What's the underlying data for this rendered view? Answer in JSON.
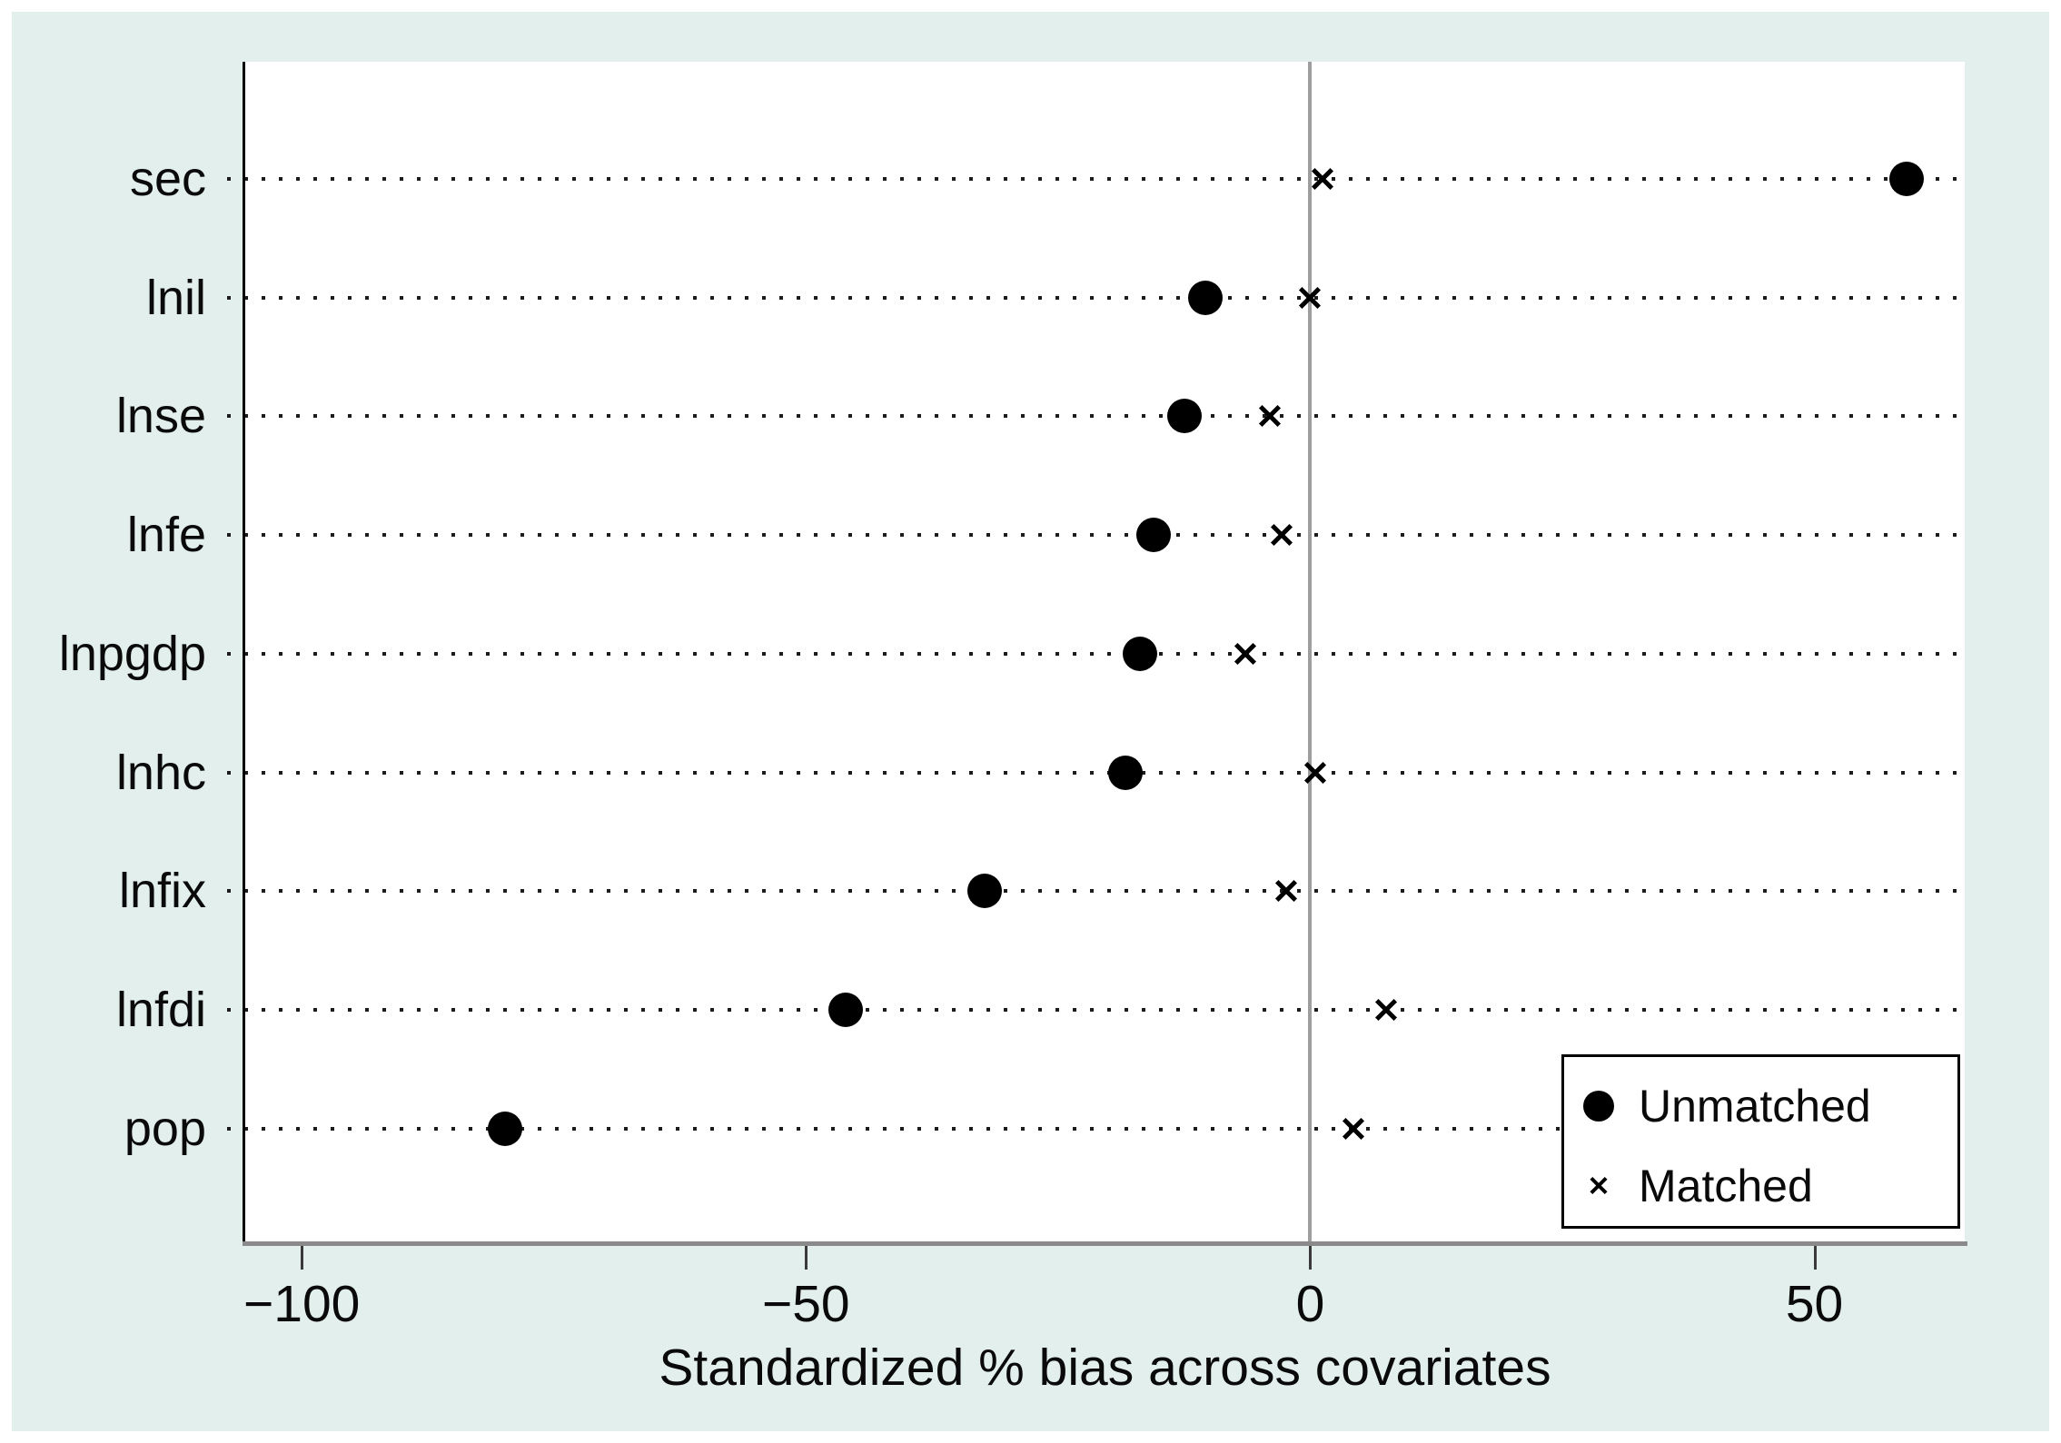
{
  "figure": {
    "background_color": "#e2efec",
    "plot_background": "#ffffff",
    "zero_line_color": "#9e9e9e",
    "bottom_axis_color": "#8a8a8a"
  },
  "x_axis": {
    "title": "Standardized % bias across covariates",
    "ticks": [
      {
        "value": -100,
        "label": "−100"
      },
      {
        "value": -50,
        "label": "−50"
      },
      {
        "value": 0,
        "label": "0"
      },
      {
        "value": 50,
        "label": "50"
      }
    ]
  },
  "legend": {
    "items": [
      {
        "label": "Unmatched",
        "marker": "circle"
      },
      {
        "label": "Matched",
        "marker": "x"
      }
    ]
  },
  "chart_data": {
    "type": "scatter",
    "variant": "horizontal-dot-plot",
    "title": "",
    "xlabel": "Standardized % bias across covariates",
    "ylabel": "",
    "categories": [
      "sec",
      "lnil",
      "lnse",
      "lnfe",
      "lnpgdp",
      "lnhc",
      "lnfix",
      "lnfdi",
      "pop"
    ],
    "series": [
      {
        "name": "Unmatched",
        "marker": "circle",
        "values": [
          59.1,
          -10.4,
          -12.5,
          -15.5,
          -16.9,
          -18.3,
          -32.3,
          -46.1,
          -79.8
        ]
      },
      {
        "name": "Matched",
        "marker": "x",
        "values": [
          1.2,
          0.0,
          -4.0,
          -2.8,
          -6.4,
          0.5,
          -2.4,
          7.5,
          4.3
        ]
      }
    ],
    "xlim": [
      -105.6,
      64.9
    ],
    "x_ticks": [
      -100,
      -50,
      0,
      50
    ],
    "grid": "dotted horizontal line per category, spanning plot width",
    "zero_reference_line": true,
    "legend_position": "inside bottom-right"
  }
}
